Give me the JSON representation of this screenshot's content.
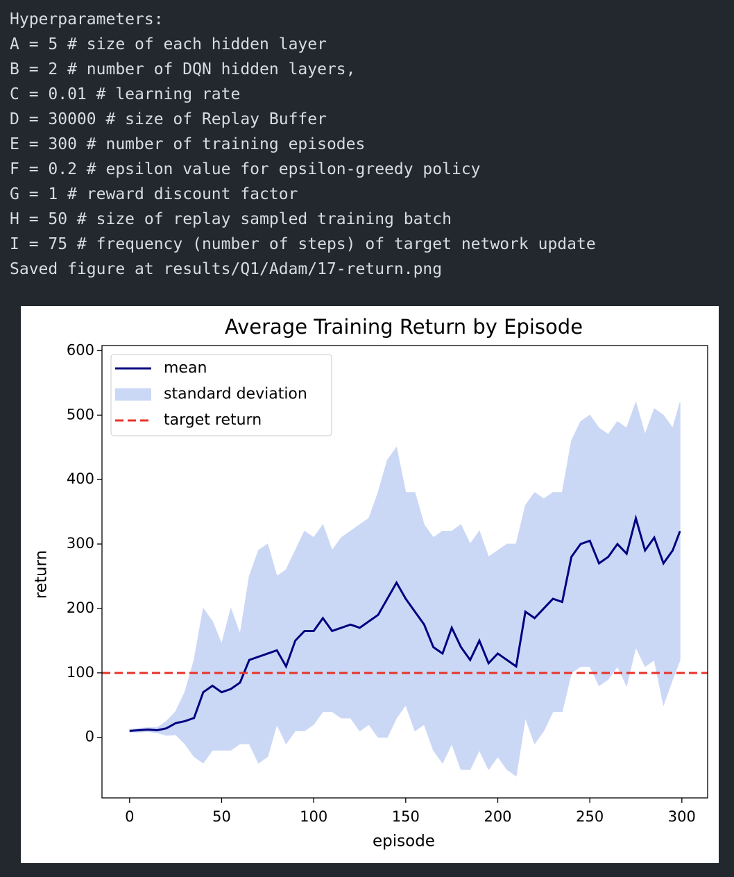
{
  "console": {
    "lines": [
      "Hyperparameters:",
      "A = 5 # size of each hidden layer",
      "B = 2 # number of DQN hidden layers,",
      "C = 0.01 # learning rate",
      "D = 30000 # size of Replay Buffer",
      "E = 300 # number of training episodes",
      "F = 0.2 # epsilon value for epsilon-greedy policy",
      "G = 1 # reward discount factor",
      "H = 50 # size of replay sampled training batch",
      "I = 75 # frequency (number of steps) of target network update",
      "Saved figure at results/Q1/Adam/17-return.png"
    ]
  },
  "chart_data": {
    "type": "line",
    "title": "Average Training Return by Episode",
    "x_label": "episode",
    "y_label": "return",
    "x": [
      0,
      5,
      10,
      15,
      20,
      25,
      30,
      35,
      40,
      45,
      50,
      55,
      60,
      65,
      70,
      75,
      80,
      85,
      90,
      95,
      100,
      105,
      110,
      115,
      120,
      125,
      130,
      135,
      140,
      145,
      150,
      155,
      160,
      165,
      170,
      175,
      180,
      185,
      190,
      195,
      200,
      205,
      210,
      215,
      220,
      225,
      230,
      235,
      240,
      245,
      250,
      255,
      260,
      265,
      270,
      275,
      280,
      285,
      290,
      295,
      299
    ],
    "series": [
      {
        "name": "mean",
        "color": "#000080",
        "style": "line",
        "values": [
          10,
          11,
          12,
          11,
          14,
          22,
          25,
          30,
          70,
          80,
          70,
          75,
          85,
          120,
          125,
          130,
          135,
          110,
          150,
          165,
          165,
          185,
          165,
          170,
          175,
          170,
          180,
          190,
          215,
          240,
          215,
          195,
          175,
          140,
          130,
          170,
          140,
          120,
          150,
          115,
          130,
          120,
          110,
          195,
          185,
          200,
          215,
          210,
          280,
          300,
          305,
          270,
          280,
          300,
          285,
          340,
          290,
          310,
          270,
          290,
          320
        ]
      },
      {
        "name": "standard deviation",
        "color": "#cbd8f5",
        "style": "band",
        "lower": [
          8,
          8,
          9,
          7,
          3,
          4,
          -10,
          -30,
          -40,
          -20,
          -20,
          -20,
          -10,
          -10,
          -40,
          -30,
          20,
          -10,
          10,
          10,
          20,
          40,
          40,
          30,
          30,
          10,
          20,
          0,
          0,
          30,
          50,
          10,
          20,
          -20,
          -40,
          -10,
          -50,
          -50,
          -20,
          -50,
          -30,
          -50,
          -60,
          30,
          -10,
          10,
          40,
          40,
          100,
          110,
          110,
          80,
          90,
          110,
          80,
          140,
          110,
          120,
          50,
          90,
          120
        ],
        "upper": [
          12,
          14,
          15,
          15,
          25,
          40,
          70,
          120,
          200,
          180,
          145,
          200,
          160,
          250,
          290,
          300,
          250,
          260,
          290,
          320,
          310,
          330,
          290,
          310,
          320,
          330,
          340,
          380,
          430,
          450,
          380,
          380,
          330,
          310,
          320,
          320,
          330,
          300,
          320,
          280,
          290,
          300,
          300,
          360,
          380,
          370,
          380,
          380,
          460,
          490,
          500,
          480,
          470,
          490,
          480,
          520,
          470,
          510,
          500,
          480,
          520
        ]
      },
      {
        "name": "target return",
        "color": "#e8332a",
        "style": "hline",
        "value": 100
      }
    ],
    "xlim": [
      -15,
      314
    ],
    "ylim": [
      -94,
      608
    ],
    "xticks": [
      0,
      50,
      100,
      150,
      200,
      250,
      300
    ],
    "yticks": [
      0,
      100,
      200,
      300,
      400,
      500,
      600
    ],
    "legend": "upper left"
  }
}
